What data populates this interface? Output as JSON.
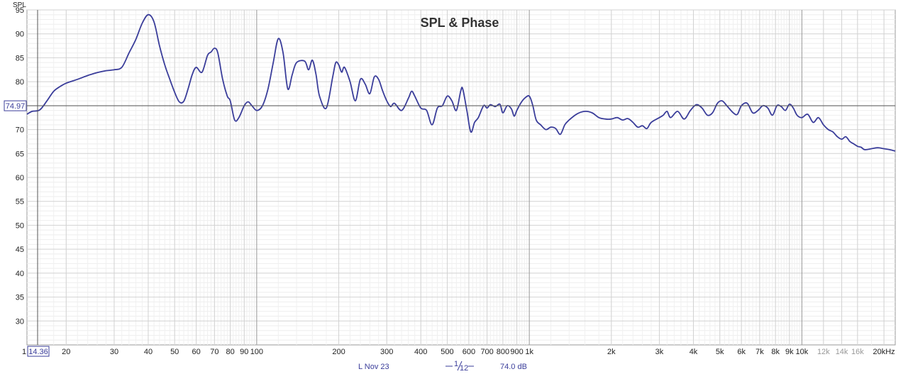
{
  "chart_data": {
    "type": "line",
    "title": "SPL & Phase",
    "ylabel": "SPL",
    "xlabel": "",
    "x_scale": "log",
    "xlim": [
      14.36,
      22000
    ],
    "ylim": [
      25,
      95
    ],
    "y_ticks": [
      "95",
      "90",
      "85",
      "80",
      "75",
      "70",
      "65",
      "60",
      "55",
      "50",
      "45",
      "40",
      "35",
      "30"
    ],
    "y_tick_values": [
      95,
      90,
      85,
      80,
      75,
      70,
      65,
      60,
      55,
      50,
      45,
      40,
      35,
      30
    ],
    "x_ticks": [
      {
        "label": "20",
        "f": 20
      },
      {
        "label": "30",
        "f": 30
      },
      {
        "label": "40",
        "f": 40
      },
      {
        "label": "50",
        "f": 50
      },
      {
        "label": "60",
        "f": 60
      },
      {
        "label": "70",
        "f": 70
      },
      {
        "label": "80",
        "f": 80
      },
      {
        "label": "90",
        "f": 90
      },
      {
        "label": "100",
        "f": 100
      },
      {
        "label": "200",
        "f": 200
      },
      {
        "label": "300",
        "f": 300
      },
      {
        "label": "400",
        "f": 400
      },
      {
        "label": "500",
        "f": 500
      },
      {
        "label": "600",
        "f": 600
      },
      {
        "label": "700",
        "f": 700
      },
      {
        "label": "800",
        "f": 800
      },
      {
        "label": "900",
        "f": 900
      },
      {
        "label": "1k",
        "f": 1000
      },
      {
        "label": "2k",
        "f": 2000
      },
      {
        "label": "3k",
        "f": 3000
      },
      {
        "label": "4k",
        "f": 4000
      },
      {
        "label": "5k",
        "f": 5000
      },
      {
        "label": "6k",
        "f": 6000
      },
      {
        "label": "7k",
        "f": 7000
      },
      {
        "label": "8k",
        "f": 8000
      },
      {
        "label": "9k",
        "f": 9000
      },
      {
        "label": "10k",
        "f": 10000
      },
      {
        "label": "12k",
        "f": 12000,
        "faint": true
      },
      {
        "label": "14k",
        "f": 14000,
        "faint": true
      },
      {
        "label": "16k",
        "f": 16000,
        "faint": true
      },
      {
        "label": "20kHz",
        "f": 20000
      }
    ],
    "x_start_label": "1",
    "cursor": {
      "x_label": "14.36",
      "y_label": "74.97",
      "y_value": 74.97
    },
    "grid": true,
    "legend": "none",
    "series": [
      {
        "color": "#3a3d9a",
        "points": [
          [
            14.36,
            73.2
          ],
          [
            15,
            73.8
          ],
          [
            16,
            74.1
          ],
          [
            17,
            76.0
          ],
          [
            18,
            78.0
          ],
          [
            19,
            79.0
          ],
          [
            20,
            79.7
          ],
          [
            22,
            80.5
          ],
          [
            24,
            81.3
          ],
          [
            26,
            81.9
          ],
          [
            28,
            82.3
          ],
          [
            30,
            82.5
          ],
          [
            32,
            83.0
          ],
          [
            34,
            86.0
          ],
          [
            36,
            88.8
          ],
          [
            38,
            92.2
          ],
          [
            40,
            94.0
          ],
          [
            42,
            92.5
          ],
          [
            44,
            87.5
          ],
          [
            46,
            83.5
          ],
          [
            48,
            80.5
          ],
          [
            50,
            77.8
          ],
          [
            52,
            75.8
          ],
          [
            54,
            75.9
          ],
          [
            56,
            78.5
          ],
          [
            58,
            81.5
          ],
          [
            60,
            83.0
          ],
          [
            63,
            82.0
          ],
          [
            66,
            85.5
          ],
          [
            68,
            86.2
          ],
          [
            70,
            87.0
          ],
          [
            72,
            86.0
          ],
          [
            75,
            80.5
          ],
          [
            78,
            77.0
          ],
          [
            80,
            76.0
          ],
          [
            83,
            72.0
          ],
          [
            86,
            72.5
          ],
          [
            90,
            75.0
          ],
          [
            93,
            75.8
          ],
          [
            96,
            75.0
          ],
          [
            100,
            74.0
          ],
          [
            105,
            75.0
          ],
          [
            110,
            78.5
          ],
          [
            115,
            84.0
          ],
          [
            120,
            89.0
          ],
          [
            125,
            86.0
          ],
          [
            130,
            78.5
          ],
          [
            135,
            81.5
          ],
          [
            140,
            84.0
          ],
          [
            150,
            84.3
          ],
          [
            155,
            82.5
          ],
          [
            160,
            84.5
          ],
          [
            165,
            81.5
          ],
          [
            170,
            77.0
          ],
          [
            180,
            74.5
          ],
          [
            190,
            81.0
          ],
          [
            195,
            84.0
          ],
          [
            200,
            83.5
          ],
          [
            205,
            82.0
          ],
          [
            210,
            83.0
          ],
          [
            220,
            80.0
          ],
          [
            230,
            76.0
          ],
          [
            240,
            80.5
          ],
          [
            250,
            79.5
          ],
          [
            260,
            77.5
          ],
          [
            270,
            81.0
          ],
          [
            280,
            80.5
          ],
          [
            290,
            78.0
          ],
          [
            300,
            76.0
          ],
          [
            310,
            74.8
          ],
          [
            320,
            75.5
          ],
          [
            340,
            74.0
          ],
          [
            360,
            76.5
          ],
          [
            370,
            78.0
          ],
          [
            380,
            77.0
          ],
          [
            400,
            74.5
          ],
          [
            420,
            74.0
          ],
          [
            440,
            71.0
          ],
          [
            460,
            74.5
          ],
          [
            480,
            75.0
          ],
          [
            500,
            77.0
          ],
          [
            520,
            76.0
          ],
          [
            540,
            74.0
          ],
          [
            560,
            78.0
          ],
          [
            570,
            78.5
          ],
          [
            590,
            74.0
          ],
          [
            610,
            69.5
          ],
          [
            630,
            71.5
          ],
          [
            650,
            72.5
          ],
          [
            680,
            75.0
          ],
          [
            700,
            74.5
          ],
          [
            720,
            75.2
          ],
          [
            750,
            74.8
          ],
          [
            780,
            75.3
          ],
          [
            800,
            73.5
          ],
          [
            830,
            75.0
          ],
          [
            860,
            74.3
          ],
          [
            880,
            72.8
          ],
          [
            900,
            74.0
          ],
          [
            930,
            75.5
          ],
          [
            960,
            76.5
          ],
          [
            1000,
            77.0
          ],
          [
            1030,
            75.0
          ],
          [
            1060,
            72.0
          ],
          [
            1100,
            71.0
          ],
          [
            1150,
            70.0
          ],
          [
            1200,
            70.5
          ],
          [
            1250,
            70.2
          ],
          [
            1300,
            69.0
          ],
          [
            1350,
            71.0
          ],
          [
            1400,
            72.0
          ],
          [
            1500,
            73.3
          ],
          [
            1600,
            73.8
          ],
          [
            1700,
            73.5
          ],
          [
            1800,
            72.5
          ],
          [
            1900,
            72.2
          ],
          [
            2000,
            72.2
          ],
          [
            2100,
            72.5
          ],
          [
            2200,
            72.0
          ],
          [
            2300,
            72.3
          ],
          [
            2400,
            71.5
          ],
          [
            2500,
            70.5
          ],
          [
            2600,
            70.8
          ],
          [
            2700,
            70.2
          ],
          [
            2800,
            71.5
          ],
          [
            3000,
            72.5
          ],
          [
            3100,
            73.0
          ],
          [
            3200,
            73.8
          ],
          [
            3300,
            72.5
          ],
          [
            3500,
            73.8
          ],
          [
            3700,
            72.2
          ],
          [
            3900,
            74.0
          ],
          [
            4100,
            75.2
          ],
          [
            4300,
            74.5
          ],
          [
            4500,
            73.0
          ],
          [
            4700,
            73.5
          ],
          [
            4900,
            75.5
          ],
          [
            5100,
            76.0
          ],
          [
            5300,
            75.0
          ],
          [
            5600,
            73.5
          ],
          [
            5800,
            73.2
          ],
          [
            6000,
            75.0
          ],
          [
            6300,
            75.5
          ],
          [
            6600,
            73.5
          ],
          [
            6900,
            74.0
          ],
          [
            7200,
            75.0
          ],
          [
            7500,
            74.5
          ],
          [
            7800,
            73.0
          ],
          [
            8100,
            75.0
          ],
          [
            8400,
            74.8
          ],
          [
            8700,
            74.0
          ],
          [
            9000,
            75.3
          ],
          [
            9300,
            74.5
          ],
          [
            9600,
            73.0
          ],
          [
            10000,
            72.5
          ],
          [
            10500,
            73.2
          ],
          [
            11000,
            71.5
          ],
          [
            11500,
            72.5
          ],
          [
            12000,
            71.0
          ],
          [
            12500,
            70.0
          ],
          [
            13000,
            69.5
          ],
          [
            13500,
            68.5
          ],
          [
            14000,
            68.0
          ],
          [
            14500,
            68.5
          ],
          [
            15000,
            67.5
          ],
          [
            15500,
            67.0
          ],
          [
            16000,
            66.5
          ],
          [
            16500,
            66.3
          ],
          [
            17000,
            65.8
          ],
          [
            18000,
            66.0
          ],
          [
            19000,
            66.2
          ],
          [
            20000,
            66.0
          ],
          [
            21000,
            65.8
          ],
          [
            22000,
            65.5
          ]
        ]
      }
    ]
  },
  "footer": {
    "measurement_label": "L Nov 23",
    "smoothing_num": "1",
    "smoothing_den": "12",
    "level_label": "74.0 dB"
  }
}
